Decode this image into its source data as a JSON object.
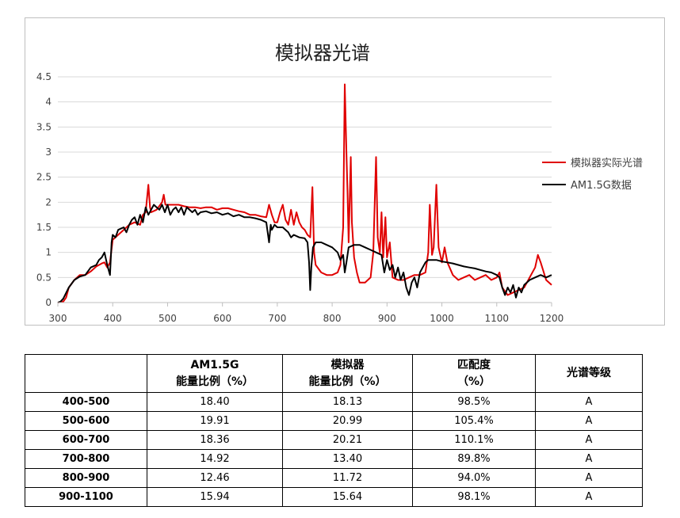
{
  "chart_data": {
    "type": "line",
    "title": "模拟器光谱",
    "xlabel": "",
    "ylabel": "",
    "xlim": [
      300,
      1200
    ],
    "ylim": [
      0,
      4.5
    ],
    "x_ticks": [
      "300",
      "400",
      "500",
      "600",
      "700",
      "800",
      "900",
      "1000",
      "1100",
      "1200"
    ],
    "y_ticks": [
      "0",
      "0.5",
      "1",
      "1.5",
      "2",
      "2.5",
      "3",
      "3.5",
      "4",
      "4.5"
    ],
    "grid": "horizontal",
    "legend_position": "right",
    "series": [
      {
        "name": "模拟器实际光谱",
        "color": "#e00000",
        "points": [
          [
            300,
            0
          ],
          [
            310,
            0.02
          ],
          [
            315,
            0.1
          ],
          [
            320,
            0.3
          ],
          [
            330,
            0.45
          ],
          [
            340,
            0.55
          ],
          [
            350,
            0.55
          ],
          [
            360,
            0.62
          ],
          [
            370,
            0.72
          ],
          [
            380,
            0.78
          ],
          [
            385,
            0.8
          ],
          [
            390,
            0.7
          ],
          [
            395,
            0.8
          ],
          [
            400,
            1.25
          ],
          [
            410,
            1.35
          ],
          [
            420,
            1.45
          ],
          [
            430,
            1.55
          ],
          [
            440,
            1.6
          ],
          [
            450,
            1.55
          ],
          [
            455,
            1.75
          ],
          [
            460,
            1.8
          ],
          [
            465,
            2.35
          ],
          [
            468,
            1.9
          ],
          [
            470,
            1.8
          ],
          [
            480,
            1.85
          ],
          [
            490,
            2.0
          ],
          [
            493,
            2.15
          ],
          [
            496,
            1.95
          ],
          [
            500,
            1.95
          ],
          [
            510,
            1.95
          ],
          [
            520,
            1.95
          ],
          [
            530,
            1.92
          ],
          [
            540,
            1.9
          ],
          [
            550,
            1.9
          ],
          [
            560,
            1.88
          ],
          [
            570,
            1.9
          ],
          [
            580,
            1.9
          ],
          [
            590,
            1.85
          ],
          [
            600,
            1.88
          ],
          [
            610,
            1.88
          ],
          [
            620,
            1.85
          ],
          [
            630,
            1.82
          ],
          [
            640,
            1.8
          ],
          [
            650,
            1.75
          ],
          [
            660,
            1.75
          ],
          [
            670,
            1.72
          ],
          [
            680,
            1.7
          ],
          [
            685,
            1.95
          ],
          [
            690,
            1.75
          ],
          [
            695,
            1.6
          ],
          [
            700,
            1.6
          ],
          [
            705,
            1.8
          ],
          [
            710,
            1.95
          ],
          [
            715,
            1.65
          ],
          [
            720,
            1.55
          ],
          [
            725,
            1.85
          ],
          [
            730,
            1.55
          ],
          [
            735,
            1.8
          ],
          [
            740,
            1.6
          ],
          [
            745,
            1.5
          ],
          [
            750,
            1.45
          ],
          [
            755,
            1.35
          ],
          [
            760,
            1.3
          ],
          [
            764,
            2.3
          ],
          [
            767,
            1.0
          ],
          [
            770,
            0.75
          ],
          [
            780,
            0.6
          ],
          [
            790,
            0.55
          ],
          [
            800,
            0.55
          ],
          [
            810,
            0.6
          ],
          [
            815,
            0.75
          ],
          [
            820,
            1.5
          ],
          [
            823,
            4.35
          ],
          [
            826,
            3.0
          ],
          [
            828,
            2.2
          ],
          [
            830,
            1.2
          ],
          [
            834,
            2.9
          ],
          [
            836,
            1.6
          ],
          [
            840,
            0.9
          ],
          [
            845,
            0.6
          ],
          [
            850,
            0.4
          ],
          [
            860,
            0.4
          ],
          [
            870,
            0.5
          ],
          [
            875,
            1.0
          ],
          [
            880,
            2.9
          ],
          [
            883,
            1.3
          ],
          [
            887,
            1.0
          ],
          [
            890,
            1.8
          ],
          [
            893,
            0.9
          ],
          [
            897,
            1.7
          ],
          [
            900,
            0.9
          ],
          [
            905,
            1.2
          ],
          [
            910,
            0.5
          ],
          [
            920,
            0.45
          ],
          [
            930,
            0.45
          ],
          [
            940,
            0.5
          ],
          [
            950,
            0.55
          ],
          [
            960,
            0.55
          ],
          [
            970,
            0.6
          ],
          [
            975,
            1.0
          ],
          [
            978,
            1.95
          ],
          [
            982,
            0.95
          ],
          [
            985,
            1.1
          ],
          [
            990,
            2.35
          ],
          [
            994,
            1.1
          ],
          [
            998,
            0.9
          ],
          [
            1000,
            0.8
          ],
          [
            1005,
            1.1
          ],
          [
            1010,
            0.8
          ],
          [
            1020,
            0.55
          ],
          [
            1030,
            0.45
          ],
          [
            1040,
            0.5
          ],
          [
            1050,
            0.55
          ],
          [
            1060,
            0.45
          ],
          [
            1070,
            0.5
          ],
          [
            1080,
            0.55
          ],
          [
            1090,
            0.45
          ],
          [
            1100,
            0.5
          ],
          [
            1105,
            0.6
          ],
          [
            1110,
            0.3
          ],
          [
            1120,
            0.15
          ],
          [
            1130,
            0.2
          ],
          [
            1140,
            0.25
          ],
          [
            1150,
            0.3
          ],
          [
            1160,
            0.5
          ],
          [
            1170,
            0.7
          ],
          [
            1175,
            0.95
          ],
          [
            1180,
            0.8
          ],
          [
            1190,
            0.45
          ],
          [
            1200,
            0.35
          ]
        ]
      },
      {
        "name": "AM1.5G数据",
        "color": "#000000",
        "points": [
          [
            300,
            0
          ],
          [
            305,
            0.02
          ],
          [
            310,
            0.08
          ],
          [
            320,
            0.3
          ],
          [
            330,
            0.45
          ],
          [
            340,
            0.52
          ],
          [
            350,
            0.55
          ],
          [
            360,
            0.7
          ],
          [
            370,
            0.75
          ],
          [
            375,
            0.85
          ],
          [
            380,
            0.9
          ],
          [
            385,
            1.0
          ],
          [
            388,
            0.85
          ],
          [
            390,
            0.75
          ],
          [
            395,
            0.55
          ],
          [
            398,
            1.2
          ],
          [
            400,
            1.35
          ],
          [
            405,
            1.3
          ],
          [
            410,
            1.45
          ],
          [
            420,
            1.5
          ],
          [
            425,
            1.4
          ],
          [
            430,
            1.55
          ],
          [
            435,
            1.65
          ],
          [
            440,
            1.7
          ],
          [
            445,
            1.55
          ],
          [
            450,
            1.75
          ],
          [
            455,
            1.6
          ],
          [
            460,
            1.9
          ],
          [
            465,
            1.75
          ],
          [
            470,
            1.85
          ],
          [
            475,
            1.95
          ],
          [
            480,
            1.9
          ],
          [
            485,
            1.85
          ],
          [
            490,
            1.95
          ],
          [
            495,
            1.8
          ],
          [
            500,
            1.95
          ],
          [
            505,
            1.75
          ],
          [
            510,
            1.85
          ],
          [
            515,
            1.9
          ],
          [
            520,
            1.8
          ],
          [
            525,
            1.9
          ],
          [
            530,
            1.75
          ],
          [
            535,
            1.9
          ],
          [
            540,
            1.85
          ],
          [
            545,
            1.8
          ],
          [
            550,
            1.85
          ],
          [
            555,
            1.75
          ],
          [
            560,
            1.8
          ],
          [
            570,
            1.82
          ],
          [
            580,
            1.78
          ],
          [
            590,
            1.8
          ],
          [
            600,
            1.75
          ],
          [
            610,
            1.78
          ],
          [
            620,
            1.72
          ],
          [
            630,
            1.75
          ],
          [
            640,
            1.7
          ],
          [
            650,
            1.7
          ],
          [
            660,
            1.68
          ],
          [
            670,
            1.65
          ],
          [
            680,
            1.6
          ],
          [
            685,
            1.2
          ],
          [
            688,
            1.55
          ],
          [
            690,
            1.45
          ],
          [
            695,
            1.55
          ],
          [
            700,
            1.5
          ],
          [
            710,
            1.5
          ],
          [
            715,
            1.45
          ],
          [
            720,
            1.4
          ],
          [
            725,
            1.3
          ],
          [
            730,
            1.35
          ],
          [
            740,
            1.3
          ],
          [
            750,
            1.28
          ],
          [
            755,
            1.2
          ],
          [
            758,
            0.8
          ],
          [
            760,
            0.25
          ],
          [
            762,
            0.7
          ],
          [
            765,
            1.1
          ],
          [
            770,
            1.2
          ],
          [
            780,
            1.2
          ],
          [
            790,
            1.15
          ],
          [
            800,
            1.1
          ],
          [
            810,
            1.0
          ],
          [
            815,
            0.85
          ],
          [
            820,
            0.95
          ],
          [
            823,
            0.6
          ],
          [
            826,
            0.8
          ],
          [
            830,
            1.1
          ],
          [
            840,
            1.15
          ],
          [
            850,
            1.15
          ],
          [
            860,
            1.1
          ],
          [
            870,
            1.05
          ],
          [
            880,
            1.0
          ],
          [
            890,
            0.95
          ],
          [
            895,
            0.6
          ],
          [
            900,
            0.85
          ],
          [
            905,
            0.65
          ],
          [
            910,
            0.75
          ],
          [
            915,
            0.5
          ],
          [
            920,
            0.7
          ],
          [
            925,
            0.45
          ],
          [
            930,
            0.6
          ],
          [
            935,
            0.3
          ],
          [
            940,
            0.15
          ],
          [
            945,
            0.4
          ],
          [
            950,
            0.5
          ],
          [
            955,
            0.3
          ],
          [
            960,
            0.6
          ],
          [
            965,
            0.7
          ],
          [
            970,
            0.8
          ],
          [
            975,
            0.85
          ],
          [
            980,
            0.85
          ],
          [
            990,
            0.85
          ],
          [
            1000,
            0.82
          ],
          [
            1010,
            0.8
          ],
          [
            1020,
            0.78
          ],
          [
            1030,
            0.75
          ],
          [
            1040,
            0.72
          ],
          [
            1050,
            0.7
          ],
          [
            1060,
            0.68
          ],
          [
            1070,
            0.65
          ],
          [
            1080,
            0.62
          ],
          [
            1090,
            0.6
          ],
          [
            1100,
            0.55
          ],
          [
            1105,
            0.5
          ],
          [
            1110,
            0.3
          ],
          [
            1115,
            0.15
          ],
          [
            1120,
            0.3
          ],
          [
            1125,
            0.2
          ],
          [
            1130,
            0.35
          ],
          [
            1135,
            0.1
          ],
          [
            1140,
            0.3
          ],
          [
            1145,
            0.2
          ],
          [
            1150,
            0.35
          ],
          [
            1160,
            0.45
          ],
          [
            1170,
            0.5
          ],
          [
            1180,
            0.55
          ],
          [
            1190,
            0.5
          ],
          [
            1200,
            0.55
          ]
        ]
      }
    ]
  },
  "table": {
    "headers": [
      {
        "line1": "",
        "line2": ""
      },
      {
        "line1": "AM1.5G",
        "line2": "能量比例（%）"
      },
      {
        "line1": "模拟器",
        "line2": "能量比例（%）"
      },
      {
        "line1": "匹配度",
        "line2": "（%）"
      },
      {
        "line1": "光谱等级",
        "line2": ""
      }
    ],
    "rows": [
      {
        "range": "400-500",
        "am15g": "18.40",
        "simulator": "18.13",
        "match": "98.5%",
        "grade": "A"
      },
      {
        "range": "500-600",
        "am15g": "19.91",
        "simulator": "20.99",
        "match": "105.4%",
        "grade": "A"
      },
      {
        "range": "600-700",
        "am15g": "18.36",
        "simulator": "20.21",
        "match": "110.1%",
        "grade": "A"
      },
      {
        "range": "700-800",
        "am15g": "14.92",
        "simulator": "13.40",
        "match": "89.8%",
        "grade": "A"
      },
      {
        "range": "800-900",
        "am15g": "12.46",
        "simulator": "11.72",
        "match": "94.0%",
        "grade": "A"
      },
      {
        "range": "900-1100",
        "am15g": "15.94",
        "simulator": "15.64",
        "match": "98.1%",
        "grade": "A"
      }
    ]
  }
}
